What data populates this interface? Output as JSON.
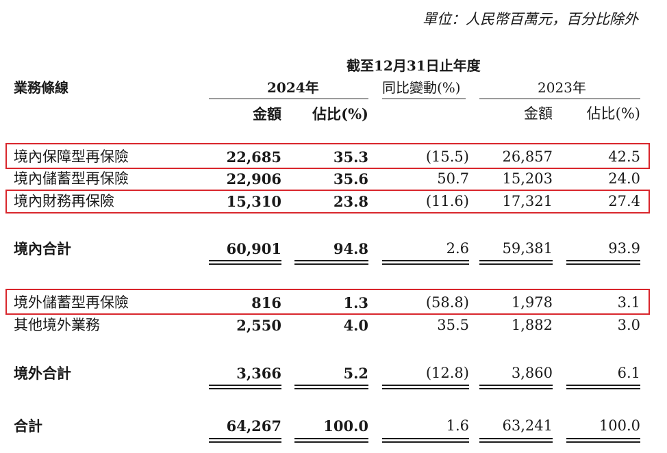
{
  "unit_note": "單位：人民幣百萬元，百分比除外",
  "header": {
    "period": "截至12月31日止年度",
    "business_line": "業務條線",
    "year_2024": "2024年",
    "yoy_change": "同比變動(%)",
    "year_2023": "2023年",
    "amount": "金額",
    "share": "佔比(%)"
  },
  "rows": [
    {
      "label": "境內保障型再保險",
      "amt_2024": "22,685",
      "pct_2024": "35.3",
      "yoy": "(15.5)",
      "amt_2023": "26,857",
      "pct_2023": "42.5",
      "highlighted": true
    },
    {
      "label": "境內儲蓄型再保險",
      "amt_2024": "22,906",
      "pct_2024": "35.6",
      "yoy": "50.7",
      "amt_2023": "15,203",
      "pct_2023": "24.0",
      "highlighted": false
    },
    {
      "label": "境內財務再保險",
      "amt_2024": "15,310",
      "pct_2024": "23.8",
      "yoy": "(11.6)",
      "amt_2023": "17,321",
      "pct_2023": "27.4",
      "highlighted": true
    },
    {
      "label": "境內合計",
      "amt_2024": "60,901",
      "pct_2024": "94.8",
      "yoy": "2.6",
      "amt_2023": "59,381",
      "pct_2023": "93.9",
      "subtotal": true
    },
    {
      "label": "境外儲蓄型再保險",
      "amt_2024": "816",
      "pct_2024": "1.3",
      "yoy": "(58.8)",
      "amt_2023": "1,978",
      "pct_2023": "3.1",
      "highlighted": true
    },
    {
      "label": "其他境外業務",
      "amt_2024": "2,550",
      "pct_2024": "4.0",
      "yoy": "35.5",
      "amt_2023": "1,882",
      "pct_2023": "3.0",
      "highlighted": false
    },
    {
      "label": "境外合計",
      "amt_2024": "3,366",
      "pct_2024": "5.2",
      "yoy": "(12.8)",
      "amt_2023": "3,860",
      "pct_2023": "6.1",
      "subtotal": true
    },
    {
      "label": "合計",
      "amt_2024": "64,267",
      "pct_2024": "100.0",
      "yoy": "1.6",
      "amt_2023": "63,241",
      "pct_2023": "100.0",
      "subtotal": true
    }
  ],
  "colors": {
    "highlight_border": "#d9262c",
    "text": "#1a1a1a"
  }
}
